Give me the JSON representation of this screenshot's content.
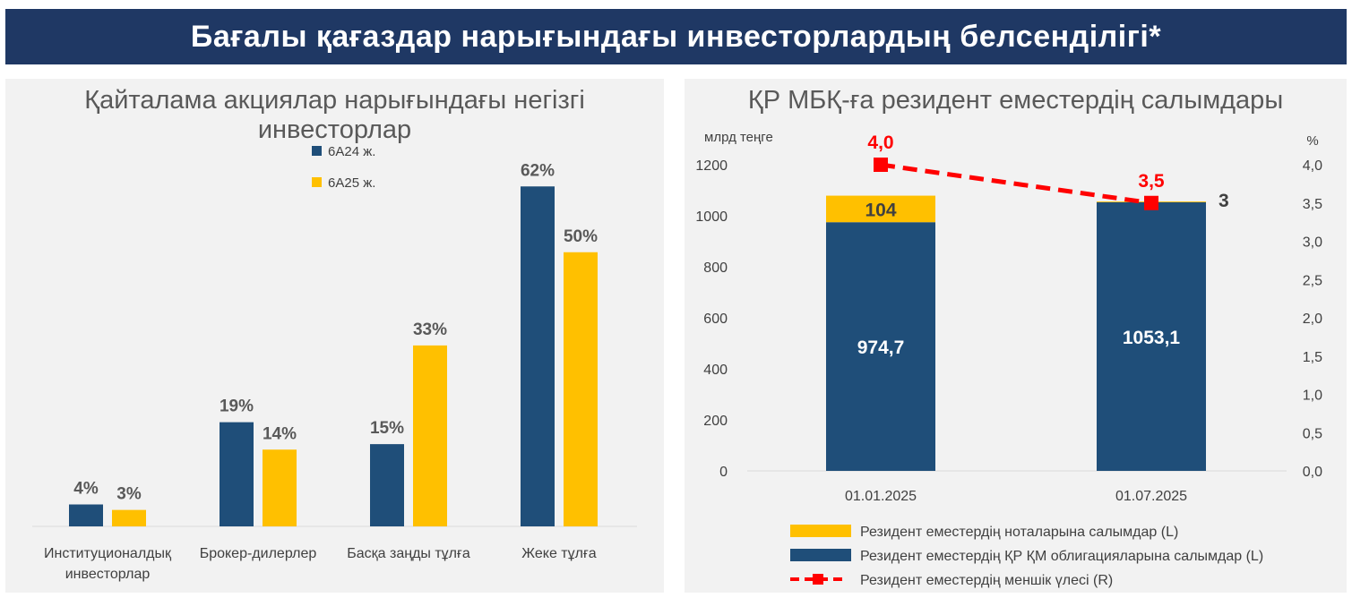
{
  "banner": {
    "title": "Бағалы қағаздар нарығындағы инвесторлардың белсенділігі*"
  },
  "colors": {
    "navy": "#1f4e79",
    "gold": "#ffc000",
    "red": "#ff0000",
    "banner": "#1f3864"
  },
  "chart_data": [
    {
      "type": "bar",
      "title": "Қайталама акциялар нарығындағы негізгі инвесторлар",
      "categories": [
        [
          "Институционалдық",
          "инвесторлар"
        ],
        [
          "Брокер-дилерлер"
        ],
        [
          "Басқа заңды тұлға"
        ],
        [
          "Жеке тұлға"
        ]
      ],
      "series": [
        {
          "name": "6А24 ж.",
          "values": [
            4,
            19,
            15,
            62
          ],
          "labels": [
            "4%",
            "19%",
            "15%",
            "62%"
          ],
          "color": "#1f4e79"
        },
        {
          "name": "6А25 ж.",
          "values": [
            3,
            14,
            33,
            50
          ],
          "labels": [
            "3%",
            "14%",
            "33%",
            "50%"
          ],
          "color": "#ffc000"
        }
      ],
      "ylim": [
        0,
        64
      ],
      "legend": "top-center"
    },
    {
      "type": "bar",
      "stacked": true,
      "title": "ҚР МБҚ-ға резидент еместердің салымдары",
      "categories": [
        "01.01.2025",
        "01.07.2025"
      ],
      "y_left_label": "млрд теңге",
      "y_right_label": "%",
      "y_left_ticks": [
        "0",
        "200",
        "400",
        "600",
        "800",
        "1000",
        "1200"
      ],
      "y_right_ticks": [
        "0,0",
        "0,5",
        "1,0",
        "1,5",
        "2,0",
        "2,5",
        "3,0",
        "3,5",
        "4,0"
      ],
      "ylim_left": [
        0,
        1200
      ],
      "ylim_right": [
        0,
        4.0
      ],
      "series": [
        {
          "name": "Резидент еместердің ҚР ҚМ облигацияларына салымдар (L)",
          "values": [
            974.7,
            1053.1
          ],
          "labels": [
            "974,7",
            "1053,1"
          ],
          "color": "#1f4e79",
          "axis": "left"
        },
        {
          "name": "Резидент еместердің ноталарына салымдар (L)",
          "values": [
            104,
            3
          ],
          "labels": [
            "104",
            "3"
          ],
          "color": "#ffc000",
          "axis": "left"
        },
        {
          "name": "Резидент еместердің меншік үлесі (R)",
          "type": "line",
          "style": "dashed",
          "values": [
            4.0,
            3.5
          ],
          "labels": [
            "4,0",
            "3,5"
          ],
          "color": "#ff0000",
          "axis": "right"
        }
      ],
      "legend": "bottom"
    }
  ]
}
